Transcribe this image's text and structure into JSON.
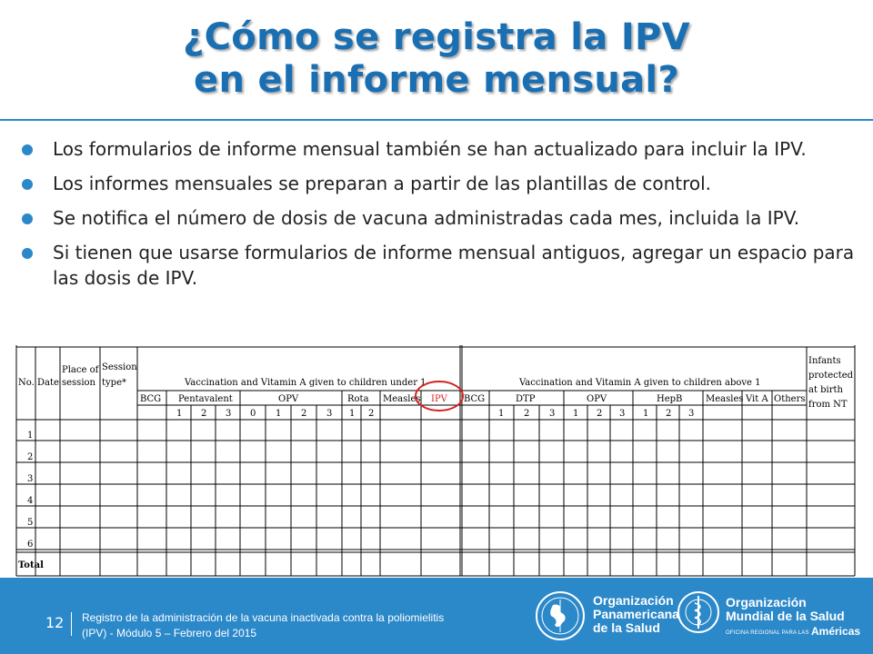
{
  "title": {
    "line1": "¿Cómo se registra la IPV",
    "line2": "en el informe mensual?"
  },
  "bullets": [
    "Los formularios de informe mensual también se han actualizado para incluir la IPV.",
    "Los informes mensuales se preparan a partir de las plantillas de control.",
    "Se notifica el número de dosis de vacuna administradas cada mes, incluida la  IPV.",
    "Si tienen que usarse formularios de informe mensual antiguos, agregar un espacio para las dosis de IPV."
  ],
  "form": {
    "col_no": "No.",
    "col_date": "Date",
    "col_place": [
      "Place of",
      "session"
    ],
    "col_session": [
      "Session",
      "type*"
    ],
    "group_under": "Vaccination and Vitamin A given to children under 1",
    "group_above": "Vaccination and Vitamin A given to children above 1",
    "under_vaccines": [
      "BCG",
      "Pentavalent",
      "OPV",
      "Rota",
      "Measles",
      "IPV"
    ],
    "above_vaccines": [
      "BCG",
      "DTP",
      "OPV",
      "HepB",
      "Measles",
      "Vit A",
      "Others"
    ],
    "infants": [
      "Infants",
      "protected",
      "at birth",
      "from NT"
    ],
    "penta_doses": [
      "1",
      "2",
      "3"
    ],
    "opv_doses": [
      "0",
      "1",
      "2",
      "3"
    ],
    "rota_doses": [
      "1",
      "2"
    ],
    "dtp_doses": [
      "1",
      "2",
      "3"
    ],
    "opv2_doses": [
      "1",
      "2",
      "3"
    ],
    "hepb_doses": [
      "1",
      "2",
      "3"
    ],
    "rows": [
      "1",
      "2",
      "3",
      "4",
      "5",
      "6"
    ],
    "total_label": "Total",
    "highlight_color": "#d62020"
  },
  "footer": {
    "page": "12",
    "caption_line1": "Registro de la administración de la vacuna inactivada contra la poliomielitis",
    "caption_line2": "(IPV) - Módulo 5 – Febrero del 2015",
    "paho_lines": [
      "Organización",
      "Panamericana",
      "de la Salud"
    ],
    "who_lines": [
      "Organización",
      "Mundial de la Salud"
    ],
    "who_region": "OFICINA REGIONAL PARA LAS",
    "who_americas": "Américas"
  },
  "colors": {
    "accent": "#2b88c9",
    "title": "#1a6fb3"
  }
}
